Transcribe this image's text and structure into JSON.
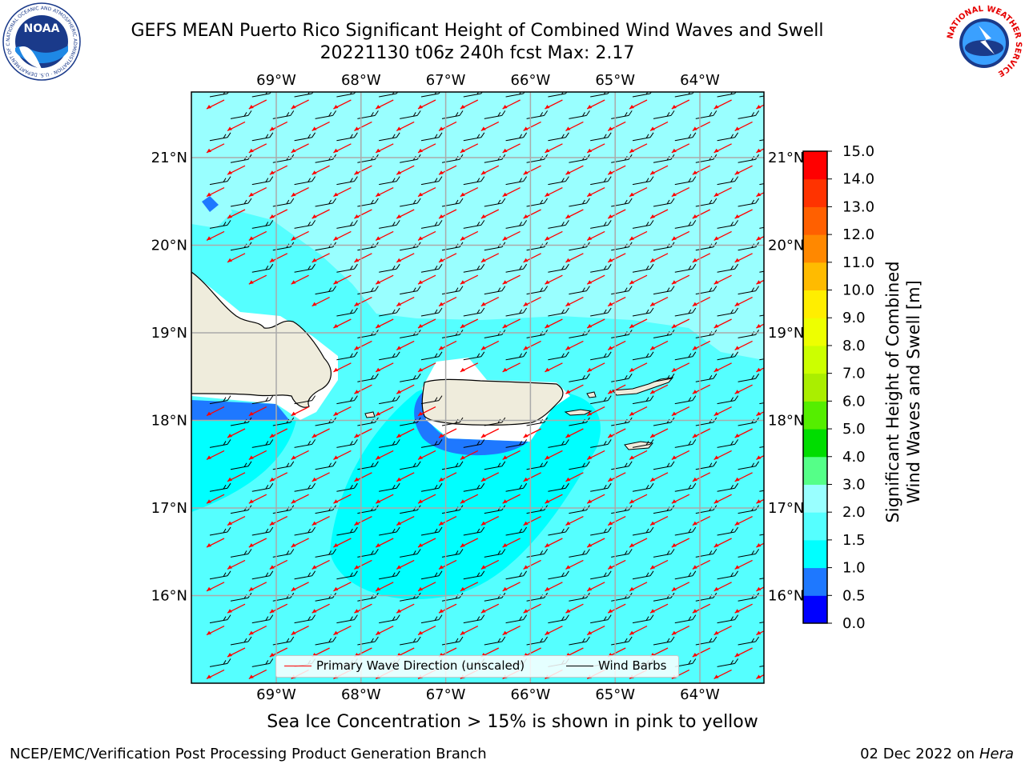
{
  "header": {
    "title_line1": "GEFS MEAN Puerto Rico Significant Height of Combined Wind Waves and Swell",
    "title_line2": "20221130 t06z 240h fcst   Max: 2.17"
  },
  "logos": {
    "noaa_text": "NOAA",
    "noaa_ring_text": "NATIONAL OCEANIC AND ATMOSPHERIC ADMINISTRATION · U.S. DEPARTMENT OF COMMERCE",
    "nws_ring_text": "NATIONAL WEATHER SERVICE"
  },
  "map": {
    "lon_ticks": [
      "69°W",
      "68°W",
      "67°W",
      "66°W",
      "65°W",
      "64°W"
    ],
    "lat_ticks": [
      "21°N",
      "20°N",
      "19°N",
      "18°N",
      "17°N",
      "16°N"
    ],
    "lon_values": [
      -69,
      -68,
      -67,
      -66,
      -65,
      -64
    ],
    "lat_values": [
      21,
      20,
      19,
      18,
      17,
      16
    ],
    "ocean_color": "#55ffff",
    "land_color": "#efecdc"
  },
  "legend": {
    "wave_direction_label": "Primary Wave Direction (unscaled)",
    "wind_barbs_label": "Wind Barbs",
    "wave_direction_color": "#ff0000",
    "wind_barbs_color": "#000000"
  },
  "colorbar": {
    "label": "Significant Height of Combined Wind Waves and Swell [m]",
    "ticks": [
      "0.0",
      "0.5",
      "1.0",
      "1.5",
      "2.0",
      "3.0",
      "4.0",
      "5.0",
      "6.0",
      "7.0",
      "8.0",
      "9.0",
      "10.0",
      "11.0",
      "12.0",
      "13.0",
      "14.0",
      "15.0"
    ],
    "colors": [
      "#0000ff",
      "#1e78ff",
      "#00ffff",
      "#55ffff",
      "#99ffff",
      "#55ff88",
      "#00dd00",
      "#55ee00",
      "#aaee00",
      "#ccff00",
      "#eeff00",
      "#ffee00",
      "#ffbb00",
      "#ff8800",
      "#ff6000",
      "#ff3300",
      "#ff0000"
    ]
  },
  "footer": {
    "caption": "Sea Ice Concentration > 15% is shown in pink to yellow",
    "credit_left": "NCEP/EMC/Verification Post Processing Product Generation Branch",
    "credit_date": "02 Dec 2022 on",
    "credit_machine": "Hera"
  }
}
